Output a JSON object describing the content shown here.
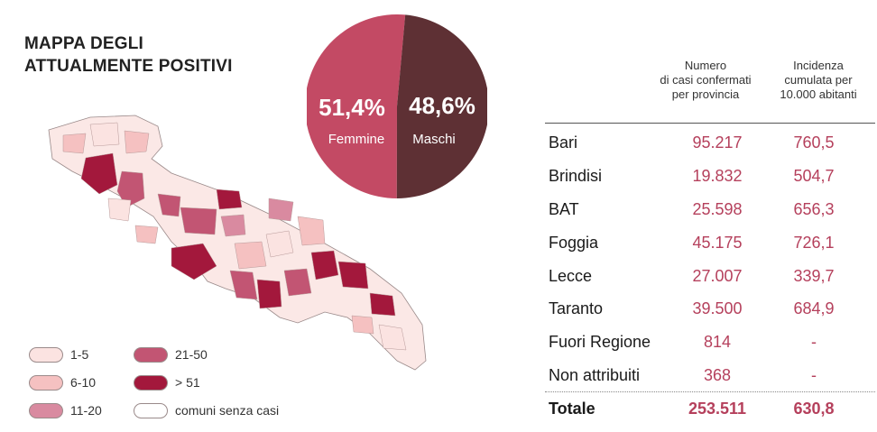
{
  "title": [
    "MAPPA DEGLI",
    "ATTUALMENTE POSITIVI"
  ],
  "pie": {
    "female_pct": "51,4%",
    "female_label": "Femmine",
    "male_pct": "48,6%",
    "male_label": "Maschi",
    "female_value": 51.4,
    "male_value": 48.6,
    "female_color": "#c34a64",
    "male_color": "#5e3034"
  },
  "legend": [
    {
      "label": "1-5",
      "color": "#fbe3e1"
    },
    {
      "label": "6-10",
      "color": "#f5c1c1"
    },
    {
      "label": "11-20",
      "color": "#d98aa0"
    },
    {
      "label": "21-50",
      "color": "#c25573"
    },
    {
      "label": "> 51",
      "color": "#a3183c"
    },
    {
      "label": "comuni senza casi",
      "color": "#ffffff"
    }
  ],
  "table": {
    "headers": [
      [
        "Numero",
        "di casi confermati",
        "per provincia"
      ],
      [
        "Incidenza",
        "cumulata per",
        "10.000 abitanti"
      ]
    ],
    "rows": [
      {
        "name": "Bari",
        "cases": "95.217",
        "incidence": "760,5"
      },
      {
        "name": "Brindisi",
        "cases": "19.832",
        "incidence": "504,7"
      },
      {
        "name": "BAT",
        "cases": "25.598",
        "incidence": "656,3"
      },
      {
        "name": "Foggia",
        "cases": "45.175",
        "incidence": "726,1"
      },
      {
        "name": "Lecce",
        "cases": "27.007",
        "incidence": "339,7"
      },
      {
        "name": "Taranto",
        "cases": "39.500",
        "incidence": "684,9"
      },
      {
        "name": "Fuori Regione",
        "cases": "814",
        "incidence": "-"
      },
      {
        "name": "Non attribuiti",
        "cases": "368",
        "incidence": "-"
      }
    ],
    "total": {
      "name": "Totale",
      "cases": "253.511",
      "incidence": "630,8"
    }
  }
}
